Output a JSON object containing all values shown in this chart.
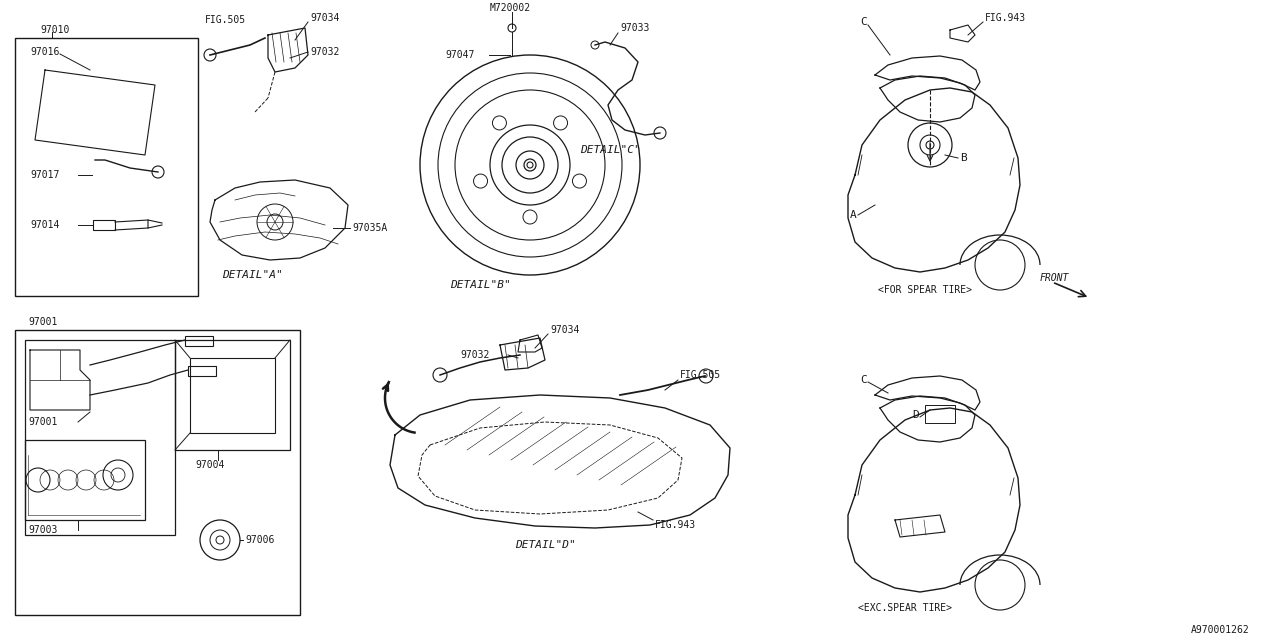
{
  "bg_color": "#ffffff",
  "line_color": "#1a1a1a",
  "diagram_id": "A970001262",
  "fs_small": 7.0,
  "fs_med": 8.0,
  "fs_large": 9.0,
  "labels": {
    "detail_a": "DETAIL\"A\"",
    "detail_b": "DETAIL\"B\"",
    "detail_c": "DETAIL\"C\"",
    "detail_d": "DETAIL\"D\"",
    "for_spare": "<FOR SPEAR TIRE>",
    "exc_spare": "<EXC.SPEAR TIRE>",
    "front": "FRONT"
  }
}
